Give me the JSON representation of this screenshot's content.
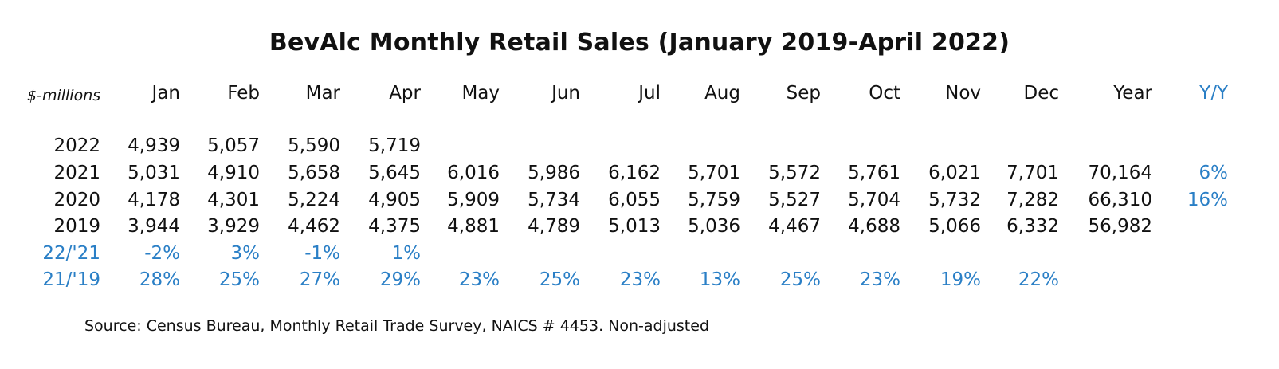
{
  "chart_data": {
    "type": "table",
    "title": "BevAlc Monthly Retail Sales (January 2019-April 2022)",
    "units_label": "$-millions",
    "columns": [
      "Jan",
      "Feb",
      "Mar",
      "Apr",
      "May",
      "Jun",
      "Jul",
      "Aug",
      "Sep",
      "Oct",
      "Nov",
      "Dec",
      "Year",
      "Y/Y"
    ],
    "rows": [
      {
        "label": "2022",
        "values": [
          "4,939",
          "5,057",
          "5,590",
          "5,719",
          "",
          "",
          "",
          "",
          "",
          "",
          "",
          "",
          "",
          ""
        ]
      },
      {
        "label": "2021",
        "values": [
          "5,031",
          "4,910",
          "5,658",
          "5,645",
          "6,016",
          "5,986",
          "6,162",
          "5,701",
          "5,572",
          "5,761",
          "6,021",
          "7,701",
          "70,164",
          "6%"
        ]
      },
      {
        "label": "2020",
        "values": [
          "4,178",
          "4,301",
          "5,224",
          "4,905",
          "5,909",
          "5,734",
          "6,055",
          "5,759",
          "5,527",
          "5,704",
          "5,732",
          "7,282",
          "66,310",
          "16%"
        ]
      },
      {
        "label": "2019",
        "values": [
          "3,944",
          "3,929",
          "4,462",
          "4,375",
          "4,881",
          "4,789",
          "5,013",
          "5,036",
          "4,467",
          "4,688",
          "5,066",
          "6,332",
          "56,982",
          ""
        ]
      },
      {
        "label": "22/'21",
        "values": [
          "-2%",
          "3%",
          "-1%",
          "1%",
          "",
          "",
          "",
          "",
          "",
          "",
          "",
          "",
          "",
          ""
        ]
      },
      {
        "label": "21/'19",
        "values": [
          "28%",
          "25%",
          "27%",
          "29%",
          "23%",
          "25%",
          "23%",
          "13%",
          "25%",
          "23%",
          "19%",
          "22%",
          "",
          ""
        ]
      }
    ],
    "source": "Source: Census Bureau, Monthly Retail Trade Survey, NAICS # 4453. Non-adjusted"
  },
  "colors": {
    "text": "#111111",
    "accent": "#2a7fc6"
  }
}
